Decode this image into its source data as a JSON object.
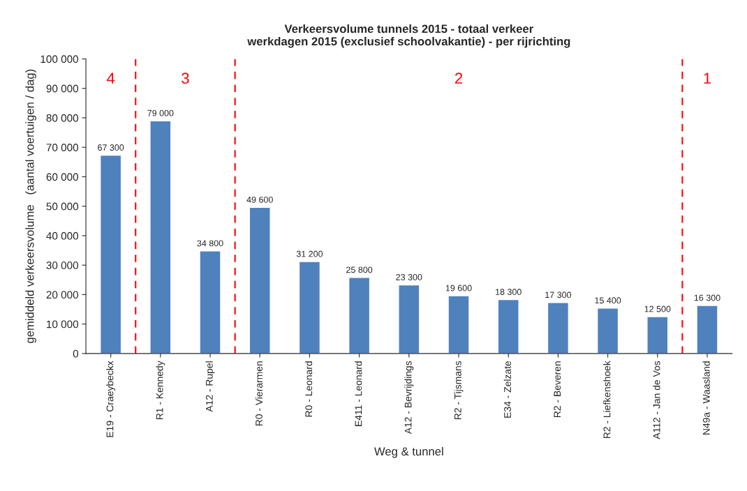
{
  "chart_data": {
    "type": "bar",
    "title": "Verkeersvolume tunnels 2015 - totaal verkeer\nwerkdagen 2015 (exclusief schoolvakantie) - per rijrichting",
    "xlabel": "Weg & tunnel",
    "ylabel": "gemiddeld verkeersvolume   (aantal voertuigen / dag)",
    "categories": [
      "E19 - Craeybeckx",
      "R1 - Kennedy",
      "A12 - Rupel",
      "R0 - Vierarmen",
      "R0 - Leonard",
      "E411 - Leonard",
      "A12 - Bevrijdings",
      "R2 - Tijsmans",
      "E34 - Zelzate",
      "R2 - Beveren",
      "R2 - Liefkenshoek",
      "A112 - Jan de Vos",
      "N49a - Waasland"
    ],
    "values": [
      67300,
      79000,
      34800,
      49600,
      31200,
      25800,
      23300,
      19600,
      18300,
      17300,
      15400,
      12500,
      16300
    ],
    "value_labels": [
      "67 300",
      "79 000",
      "34 800",
      "49 600",
      "31 200",
      "25 800",
      "23 300",
      "19 600",
      "18 300",
      "17 300",
      "15 400",
      "12 500",
      "16 300"
    ],
    "color": "#4f81bd",
    "ylim": [
      0,
      100000
    ],
    "yticks": [
      0,
      {
        "value": 10000,
        "label": "10 000"
      },
      {
        "value": 20000,
        "label": "20 000"
      },
      {
        "value": 30000,
        "label": "30 000"
      },
      {
        "value": 40000,
        "label": "40 000"
      },
      {
        "value": 50000,
        "label": "50 000"
      },
      {
        "value": 60000,
        "label": "60 000"
      },
      {
        "value": 70000,
        "label": "70 000"
      },
      {
        "value": 80000,
        "label": "80 000"
      },
      {
        "value": 90000,
        "label": "90 000"
      },
      {
        "value": 100000,
        "label": "100 000"
      }
    ],
    "annotations": [
      "4",
      "3",
      "2",
      "1"
    ],
    "grid": false,
    "legend": false
  }
}
